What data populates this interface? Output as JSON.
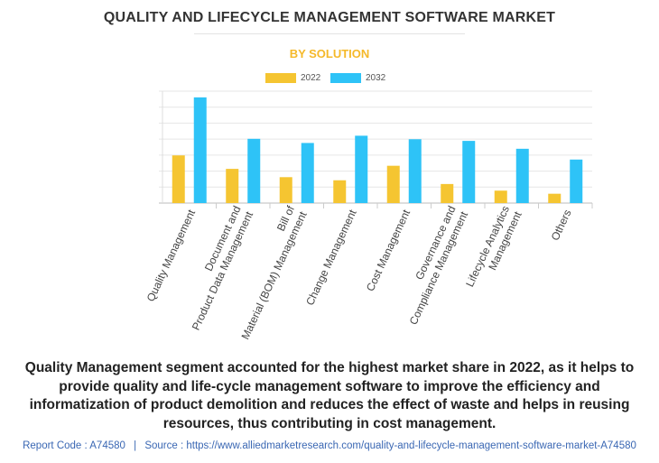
{
  "title": "QUALITY AND LIFECYCLE MANAGEMENT SOFTWARE MARKET",
  "subtitle": "BY SOLUTION",
  "caption": "Quality Management segment accounted for the highest market share in 2022, as it helps to provide quality and life-cycle management software to improve the efficiency and informatization of product demolition and reduces the effect of waste and helps in reusing resources, thus contributing in cost management.",
  "footer": {
    "report_code": "Report Code : A74580",
    "separator": "|",
    "source": "Source : https://www.alliedmarketresearch.com/quality-and-lifecycle-management-software-market-A74580"
  },
  "colors": {
    "2022": "#f5c531",
    "2032": "#2ec3f7",
    "subtitle": "#f5b92a",
    "footer": "#3a67b3"
  },
  "chart_data": {
    "type": "bar",
    "title": "QUALITY AND LIFECYCLE MANAGEMENT SOFTWARE MARKET",
    "subtitle": "BY SOLUTION",
    "categories": [
      [
        "Quality Management"
      ],
      [
        "Document and",
        "Product Data Management"
      ],
      [
        "Bill of",
        "Material (BOM) Management"
      ],
      [
        "Change Management"
      ],
      [
        "Cost Management"
      ],
      [
        "Governance and",
        "Compliance Management"
      ],
      [
        "Lifecycle Analytics",
        "Management"
      ],
      [
        "Others"
      ]
    ],
    "series": [
      {
        "name": "2022",
        "values": [
          2.3,
          1.65,
          1.25,
          1.1,
          1.8,
          0.92,
          0.6,
          0.45
        ]
      },
      {
        "name": "2032",
        "values": [
          5.1,
          3.1,
          2.9,
          3.25,
          3.08,
          3.0,
          2.62,
          2.1
        ]
      }
    ],
    "ylim": [
      0,
      5.4
    ],
    "y_ticks_labeled": false,
    "grid": true,
    "legend_position": "top-center"
  }
}
